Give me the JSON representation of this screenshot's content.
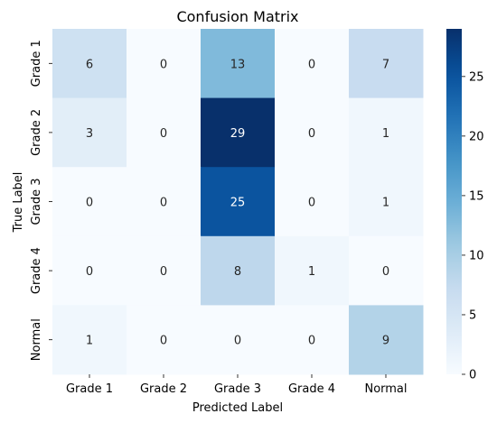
{
  "chart_data": {
    "type": "heatmap",
    "title": "Confusion Matrix",
    "xlabel": "Predicted Label",
    "ylabel": "True Label",
    "x_categories": [
      "Grade 1",
      "Grade 2",
      "Grade 3",
      "Grade 4",
      "Normal"
    ],
    "y_categories": [
      "Grade 1",
      "Grade 2",
      "Grade 3",
      "Grade 4",
      "Normal"
    ],
    "values": [
      [
        6,
        0,
        13,
        0,
        7
      ],
      [
        3,
        0,
        29,
        0,
        1
      ],
      [
        0,
        0,
        25,
        0,
        1
      ],
      [
        0,
        0,
        8,
        1,
        0
      ],
      [
        1,
        0,
        0,
        0,
        9
      ]
    ],
    "colorbar": {
      "min": 0,
      "max": 29,
      "ticks": [
        "0",
        "5",
        "10",
        "15",
        "20",
        "25"
      ],
      "colormap": "Blues"
    },
    "colors": {
      "low": "#f7fbff",
      "high": "#08306b"
    }
  }
}
